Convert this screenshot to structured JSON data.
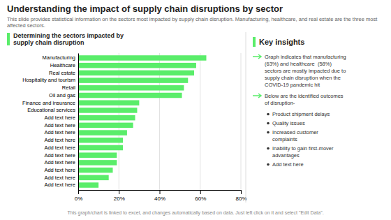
{
  "chart_data": {
    "type": "bar",
    "orientation": "horizontal",
    "title": "Understanding the impact of supply chain disruptions by sector",
    "subtitle": "This slide provides statistical information on the sectors most impacted by supply chain disruption. Manufacturing, healthcare, and real estate are the three most affected sectors.",
    "categories": [
      "Manufacturing",
      "Healthcare",
      "Real estate",
      "Hospitality and tourism",
      "Retail",
      "Oil and gas",
      "Finance and insurance",
      "Educational services",
      "Add text here",
      "Add text here",
      "Add text here",
      "Add text here",
      "Add text here",
      "Add text here",
      "Add text here",
      "Add text here",
      "Add text here",
      "Add text here"
    ],
    "values": [
      63,
      58,
      57,
      54,
      52,
      51,
      30,
      29,
      28,
      27,
      24,
      22,
      22,
      19,
      19,
      17,
      15,
      10
    ],
    "color": "#5aed6a",
    "xlim": [
      0,
      80
    ],
    "xticks": [
      {
        "value": 0,
        "label": "0%"
      },
      {
        "value": 20,
        "label": "20%"
      },
      {
        "value": 40,
        "label": "40%"
      },
      {
        "value": 60,
        "label": "60%"
      },
      {
        "value": 80,
        "label": "80%"
      }
    ],
    "grid": true,
    "annotations": [
      "Determining the sectors impacted by\nsupply chain disruption",
      "Key insights",
      "Graph indicates that manufacturing\n(63%) and healthcare  (58%)\nsectors are mostly impacted due to\nsupply chain disruption when the\nCOVID-19 pandemic hit",
      "Below are the identified outcomes\nof disruption-",
      "Product shipment delays",
      "Quality issues",
      "Increased customer\ncomplaints",
      "Inability to gain first-mover\nadvantages",
      "Add text here",
      "This graph/chart is linked to excel, and changes automatically based on data. Just left click on it and select \"Edit Data\"."
    ]
  }
}
